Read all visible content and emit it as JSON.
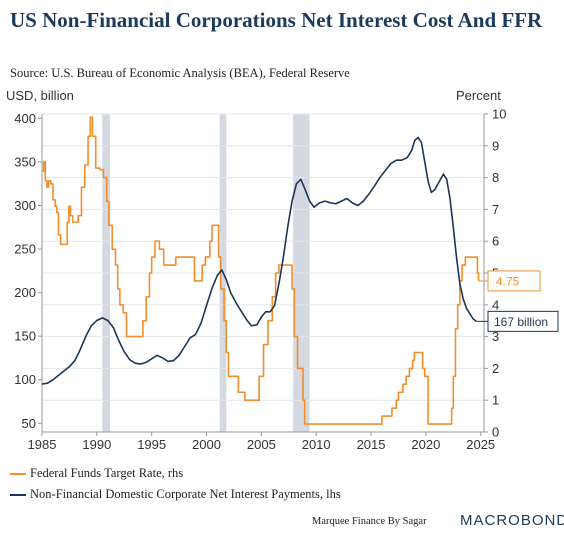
{
  "header": {
    "title": "US Non-Financial Corporations Net Interest Cost And FFR",
    "source": "Source: U.S. Bureau of Economic Analysis (BEA), Federal Reserve"
  },
  "footer": {
    "credit": "Marquee Finance By Sagar",
    "brand": "MACROBOND"
  },
  "colors": {
    "ffr": "#f28e2b",
    "interest": "#1d3557",
    "recession": "#d4d8e0",
    "grid": "#e3e6ea"
  },
  "chart_data": {
    "type": "line",
    "title": "US Non-Financial Corporations Net Interest Cost And FFR",
    "y_left_label": "USD, billion",
    "y_right_label": "Percent",
    "xlim": [
      1985,
      2025.3
    ],
    "ylim_left": [
      40,
      405
    ],
    "ylim_right": [
      0,
      10
    ],
    "x_ticks": [
      "1985",
      "1990",
      "1995",
      "2000",
      "2005",
      "2010",
      "2015",
      "2020",
      "2025"
    ],
    "y_left_ticks": [
      "50",
      "100",
      "150",
      "200",
      "250",
      "300",
      "350",
      "400"
    ],
    "y_right_ticks": [
      "0",
      "1",
      "2",
      "3",
      "4",
      "5",
      "6",
      "7",
      "8",
      "9",
      "10"
    ],
    "grid": true,
    "legend_position": "bottom",
    "recessions": [
      {
        "start": 1990.5,
        "end": 1991.2
      },
      {
        "start": 2001.2,
        "end": 2001.8
      },
      {
        "start": 2007.9,
        "end": 2009.4
      }
    ],
    "series": [
      {
        "name": "Federal Funds Target Rate, rhs",
        "axis": "right",
        "color": "#f28e2b",
        "end_label": "4.75",
        "points": [
          [
            1985.0,
            8.2
          ],
          [
            1985.15,
            8.5
          ],
          [
            1985.3,
            7.9
          ],
          [
            1985.45,
            7.7
          ],
          [
            1985.6,
            7.9
          ],
          [
            1985.8,
            7.8
          ],
          [
            1986.0,
            7.3
          ],
          [
            1986.2,
            7.1
          ],
          [
            1986.35,
            6.9
          ],
          [
            1986.5,
            6.2
          ],
          [
            1986.7,
            5.9
          ],
          [
            1987.0,
            5.9
          ],
          [
            1987.3,
            6.6
          ],
          [
            1987.45,
            7.1
          ],
          [
            1987.6,
            6.8
          ],
          [
            1987.8,
            6.6
          ],
          [
            1988.0,
            6.6
          ],
          [
            1988.3,
            6.8
          ],
          [
            1988.6,
            7.7
          ],
          [
            1988.9,
            8.4
          ],
          [
            1989.2,
            9.3
          ],
          [
            1989.4,
            9.9
          ],
          [
            1989.6,
            9.3
          ],
          [
            1989.9,
            8.3
          ],
          [
            1990.3,
            8.25
          ],
          [
            1990.6,
            8.0
          ],
          [
            1990.9,
            7.25
          ],
          [
            1991.1,
            6.5
          ],
          [
            1991.4,
            5.75
          ],
          [
            1991.7,
            5.25
          ],
          [
            1991.9,
            4.5
          ],
          [
            1992.1,
            4.0
          ],
          [
            1992.4,
            3.75
          ],
          [
            1992.7,
            3.0
          ],
          [
            1993.5,
            3.0
          ],
          [
            1994.0,
            3.0
          ],
          [
            1994.2,
            3.5
          ],
          [
            1994.5,
            4.25
          ],
          [
            1994.8,
            5.0
          ],
          [
            1995.0,
            5.5
          ],
          [
            1995.3,
            6.0
          ],
          [
            1995.7,
            5.75
          ],
          [
            1996.1,
            5.25
          ],
          [
            1996.5,
            5.25
          ],
          [
            1997.2,
            5.5
          ],
          [
            1998.6,
            5.5
          ],
          [
            1998.9,
            4.75
          ],
          [
            1999.3,
            4.75
          ],
          [
            1999.6,
            5.25
          ],
          [
            1999.9,
            5.5
          ],
          [
            2000.3,
            6.0
          ],
          [
            2000.5,
            6.5
          ],
          [
            2000.9,
            6.5
          ],
          [
            2001.1,
            5.5
          ],
          [
            2001.3,
            4.5
          ],
          [
            2001.6,
            3.5
          ],
          [
            2001.8,
            2.5
          ],
          [
            2002.0,
            1.75
          ],
          [
            2002.9,
            1.25
          ],
          [
            2003.5,
            1.0
          ],
          [
            2004.5,
            1.0
          ],
          [
            2004.8,
            1.75
          ],
          [
            2005.2,
            2.75
          ],
          [
            2005.6,
            3.5
          ],
          [
            2006.0,
            4.25
          ],
          [
            2006.3,
            5.0
          ],
          [
            2006.6,
            5.25
          ],
          [
            2007.6,
            5.25
          ],
          [
            2007.8,
            4.5
          ],
          [
            2008.0,
            3.0
          ],
          [
            2008.3,
            2.0
          ],
          [
            2008.8,
            1.0
          ],
          [
            2008.95,
            0.25
          ],
          [
            2015.9,
            0.25
          ],
          [
            2016.0,
            0.5
          ],
          [
            2016.9,
            0.75
          ],
          [
            2017.3,
            1.0
          ],
          [
            2017.5,
            1.25
          ],
          [
            2017.9,
            1.5
          ],
          [
            2018.2,
            1.75
          ],
          [
            2018.5,
            2.0
          ],
          [
            2018.8,
            2.25
          ],
          [
            2018.95,
            2.5
          ],
          [
            2019.6,
            2.5
          ],
          [
            2019.7,
            2.0
          ],
          [
            2019.9,
            1.75
          ],
          [
            2020.2,
            0.25
          ],
          [
            2022.2,
            0.25
          ],
          [
            2022.35,
            0.75
          ],
          [
            2022.5,
            1.75
          ],
          [
            2022.7,
            3.25
          ],
          [
            2022.9,
            4.0
          ],
          [
            2023.1,
            4.75
          ],
          [
            2023.3,
            5.25
          ],
          [
            2023.6,
            5.5
          ],
          [
            2024.6,
            5.5
          ],
          [
            2024.7,
            5.0
          ],
          [
            2024.8,
            4.75
          ]
        ]
      },
      {
        "name": "Non-Financial Domestic Corporate Net Interest Payments, lhs",
        "axis": "left",
        "color": "#1d3557",
        "end_label": "167 billion",
        "points": [
          [
            1985.0,
            95
          ],
          [
            1985.5,
            96
          ],
          [
            1986.0,
            100
          ],
          [
            1986.5,
            105
          ],
          [
            1987.0,
            110
          ],
          [
            1987.5,
            115
          ],
          [
            1988.0,
            122
          ],
          [
            1988.5,
            135
          ],
          [
            1989.0,
            150
          ],
          [
            1989.5,
            162
          ],
          [
            1990.0,
            168
          ],
          [
            1990.5,
            171
          ],
          [
            1991.0,
            168
          ],
          [
            1991.5,
            160
          ],
          [
            1992.0,
            145
          ],
          [
            1992.5,
            132
          ],
          [
            1993.0,
            123
          ],
          [
            1993.5,
            119
          ],
          [
            1994.0,
            118
          ],
          [
            1994.5,
            120
          ],
          [
            1995.0,
            124
          ],
          [
            1995.5,
            128
          ],
          [
            1996.0,
            125
          ],
          [
            1996.5,
            121
          ],
          [
            1997.0,
            122
          ],
          [
            1997.5,
            128
          ],
          [
            1998.0,
            138
          ],
          [
            1998.5,
            148
          ],
          [
            1999.0,
            152
          ],
          [
            1999.5,
            165
          ],
          [
            2000.0,
            185
          ],
          [
            2000.5,
            205
          ],
          [
            2001.0,
            220
          ],
          [
            2001.4,
            226
          ],
          [
            2001.8,
            215
          ],
          [
            2002.2,
            200
          ],
          [
            2002.7,
            188
          ],
          [
            2003.2,
            178
          ],
          [
            2003.7,
            168
          ],
          [
            2004.1,
            162
          ],
          [
            2004.6,
            163
          ],
          [
            2005.0,
            172
          ],
          [
            2005.4,
            178
          ],
          [
            2005.8,
            178
          ],
          [
            2006.2,
            185
          ],
          [
            2006.6,
            210
          ],
          [
            2007.0,
            240
          ],
          [
            2007.4,
            275
          ],
          [
            2007.8,
            305
          ],
          [
            2008.2,
            325
          ],
          [
            2008.6,
            330
          ],
          [
            2009.0,
            318
          ],
          [
            2009.4,
            305
          ],
          [
            2009.8,
            298
          ],
          [
            2010.3,
            303
          ],
          [
            2010.8,
            305
          ],
          [
            2011.3,
            303
          ],
          [
            2011.8,
            302
          ],
          [
            2012.3,
            305
          ],
          [
            2012.8,
            308
          ],
          [
            2013.3,
            303
          ],
          [
            2013.8,
            300
          ],
          [
            2014.3,
            305
          ],
          [
            2014.8,
            313
          ],
          [
            2015.3,
            322
          ],
          [
            2015.8,
            332
          ],
          [
            2016.3,
            340
          ],
          [
            2016.8,
            348
          ],
          [
            2017.3,
            352
          ],
          [
            2017.8,
            352
          ],
          [
            2018.3,
            355
          ],
          [
            2018.7,
            363
          ],
          [
            2019.0,
            375
          ],
          [
            2019.3,
            378
          ],
          [
            2019.6,
            372
          ],
          [
            2019.9,
            350
          ],
          [
            2020.2,
            328
          ],
          [
            2020.5,
            315
          ],
          [
            2020.8,
            318
          ],
          [
            2021.2,
            327
          ],
          [
            2021.6,
            336
          ],
          [
            2021.9,
            330
          ],
          [
            2022.2,
            308
          ],
          [
            2022.5,
            275
          ],
          [
            2022.8,
            240
          ],
          [
            2023.1,
            210
          ],
          [
            2023.4,
            193
          ],
          [
            2023.7,
            182
          ],
          [
            2024.0,
            176
          ],
          [
            2024.3,
            170
          ],
          [
            2024.6,
            167
          ]
        ]
      }
    ]
  }
}
